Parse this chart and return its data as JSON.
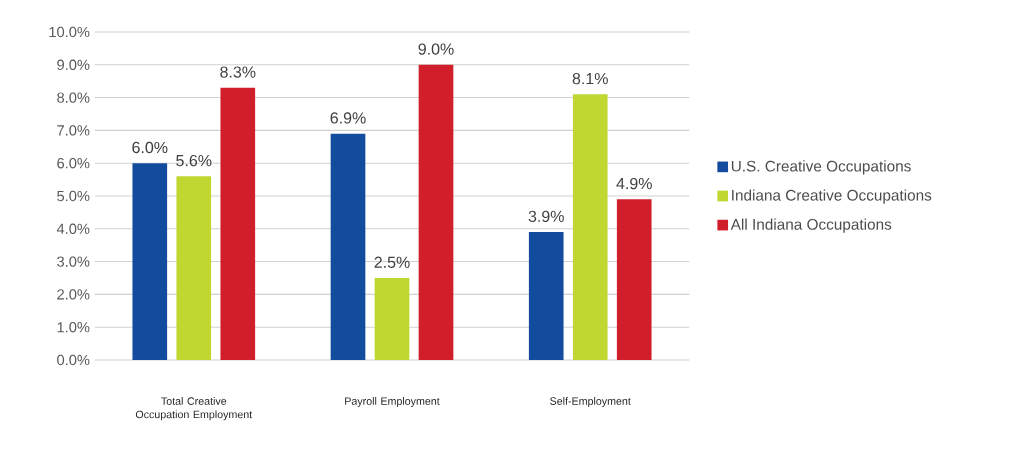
{
  "chart_data": {
    "type": "bar",
    "categories": [
      "Total Creative Occupation Employment",
      "Payroll Employment",
      "Self-Employment"
    ],
    "series": [
      {
        "name": "U.S. Creative Occupations",
        "color": "#134c9c",
        "values": [
          6.0,
          6.9,
          3.9
        ],
        "value_labels": [
          "6.0%",
          "6.9%",
          "3.9%"
        ]
      },
      {
        "name": "Indiana Creative Occupations",
        "color": "#bfd730",
        "values": [
          5.6,
          2.5,
          8.1
        ],
        "value_labels": [
          "5.6%",
          "2.5%",
          "8.1%"
        ]
      },
      {
        "name": "All Indiana Occupations",
        "color": "#d01f2b",
        "values": [
          8.3,
          9.0,
          4.9
        ],
        "value_labels": [
          "8.3%",
          "9.0%",
          "4.9%"
        ]
      }
    ],
    "ylim": [
      0,
      10
    ],
    "yticks": [
      {
        "value": 0,
        "label": "0.0%"
      },
      {
        "value": 1,
        "label": "1.0%"
      },
      {
        "value": 2,
        "label": "2.0%"
      },
      {
        "value": 3,
        "label": "3.0%"
      },
      {
        "value": 4,
        "label": "4.0%"
      },
      {
        "value": 5,
        "label": "5.0%"
      },
      {
        "value": 6,
        "label": "6.0%"
      },
      {
        "value": 7,
        "label": "7.0%"
      },
      {
        "value": 8,
        "label": "8.0%"
      },
      {
        "value": 9,
        "label": "9.0%"
      },
      {
        "value": 10,
        "label": "10.0%"
      }
    ],
    "grid": "y",
    "legend": "right"
  }
}
